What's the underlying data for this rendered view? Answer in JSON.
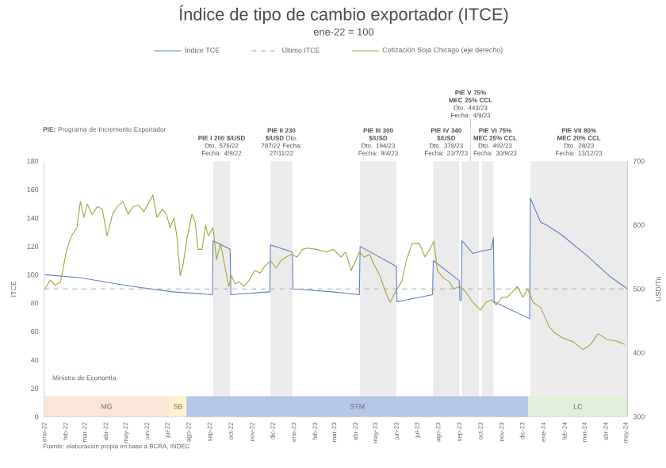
{
  "chart_data": {
    "type": "line",
    "title": "Índice de tipo de cambio exportador (ITCE)",
    "subtitle": "ene-22 = 100",
    "ylabel": "ITCE",
    "y2label": "USD/Tn",
    "legend": "top",
    "xlim": [
      "2022-01-01",
      "2024-05-03"
    ],
    "xticks": [
      {
        "value": "2022-01-01",
        "label": "ene-22"
      },
      {
        "value": "2022-02-01",
        "label": "feb-22"
      },
      {
        "value": "2022-03-01",
        "label": "mar-22"
      },
      {
        "value": "2022-04-01",
        "label": "abr-22"
      },
      {
        "value": "2022-05-01",
        "label": "may-22"
      },
      {
        "value": "2022-06-01",
        "label": "jun-22"
      },
      {
        "value": "2022-07-01",
        "label": "jul-22"
      },
      {
        "value": "2022-08-01",
        "label": "ago-22"
      },
      {
        "value": "2022-09-01",
        "label": "sep-22"
      },
      {
        "value": "2022-10-01",
        "label": "oct-22"
      },
      {
        "value": "2022-11-01",
        "label": "nov-22"
      },
      {
        "value": "2022-12-01",
        "label": "dic-22"
      },
      {
        "value": "2023-01-01",
        "label": "ene-23"
      },
      {
        "value": "2023-02-01",
        "label": "feb-23"
      },
      {
        "value": "2023-03-01",
        "label": "mar-23"
      },
      {
        "value": "2023-04-01",
        "label": "abr-23"
      },
      {
        "value": "2023-05-01",
        "label": "may-23"
      },
      {
        "value": "2023-06-01",
        "label": "jun-23"
      },
      {
        "value": "2023-07-01",
        "label": "jul-23"
      },
      {
        "value": "2023-08-01",
        "label": "ago-23"
      },
      {
        "value": "2023-09-01",
        "label": "sep-23"
      },
      {
        "value": "2023-10-01",
        "label": "oct-23"
      },
      {
        "value": "2023-11-01",
        "label": "nov-23"
      },
      {
        "value": "2023-12-01",
        "label": "dic-23"
      },
      {
        "value": "2024-01-01",
        "label": "ene-24"
      },
      {
        "value": "2024-02-01",
        "label": "feb-24"
      },
      {
        "value": "2024-03-01",
        "label": "mar-24"
      },
      {
        "value": "2024-04-01",
        "label": "abr-24"
      },
      {
        "value": "2024-05-01",
        "label": "may-24"
      }
    ],
    "ylim": [
      0,
      180
    ],
    "yticks": [
      0,
      20,
      40,
      60,
      80,
      100,
      120,
      140,
      160,
      180
    ],
    "y2lim": [
      300,
      700
    ],
    "y2ticks": [
      300,
      400,
      500,
      600,
      700
    ],
    "series": [
      {
        "name": "Índice TCE",
        "color": "#5b7fbf",
        "x": [
          "2022-01-02",
          "2022-02-22",
          "2022-05-07",
          "2022-07-08",
          "2022-09-04",
          "2022-09-05",
          "2022-09-30",
          "2022-10-01",
          "2022-11-27",
          "2022-11-28",
          "2022-12-30",
          "2022-12-31",
          "2023-02-26",
          "2023-04-07",
          "2023-04-08",
          "2023-05-31",
          "2023-06-01",
          "2023-07-23",
          "2023-07-24",
          "2023-08-31",
          "2023-09-01",
          "2023-09-03",
          "2023-09-04",
          "2023-09-20",
          "2023-10-05",
          "2023-10-17",
          "2023-10-20",
          "2023-10-21",
          "2023-12-12",
          "2023-12-13",
          "2023-12-28",
          "2024-01-06",
          "2024-01-28",
          "2024-03-06",
          "2024-04-07",
          "2024-05-03"
        ],
        "values": [
          100,
          98,
          92,
          88,
          86,
          124,
          118,
          86,
          88,
          121,
          116,
          90,
          88,
          86,
          120,
          106,
          81,
          86,
          110,
          96,
          82,
          82,
          124,
          115,
          117,
          118,
          126,
          81,
          69,
          154,
          137,
          135,
          128,
          113,
          99,
          90
        ]
      },
      {
        "name": "Último ITCE",
        "color": "#a6a6a6",
        "line_style": "dashed",
        "x": [
          "2022-01-01",
          "2024-05-03"
        ],
        "values": [
          90,
          90
        ]
      },
      {
        "name": "Cotización Soja Chicago (eje derecho)",
        "color": "#9aa83a",
        "axis": "y2",
        "x": [
          "2022-01-02",
          "2022-01-10",
          "2022-01-17",
          "2022-01-25",
          "2022-02-03",
          "2022-02-10",
          "2022-02-18",
          "2022-02-23",
          "2022-02-28",
          "2022-03-05",
          "2022-03-12",
          "2022-03-20",
          "2022-03-27",
          "2022-04-03",
          "2022-04-11",
          "2022-04-18",
          "2022-04-26",
          "2022-05-04",
          "2022-05-11",
          "2022-05-19",
          "2022-05-27",
          "2022-06-04",
          "2022-06-09",
          "2022-06-15",
          "2022-06-23",
          "2022-06-29",
          "2022-07-04",
          "2022-07-10",
          "2022-07-14",
          "2022-07-19",
          "2022-07-23",
          "2022-07-29",
          "2022-08-05",
          "2022-08-10",
          "2022-08-14",
          "2022-08-20",
          "2022-08-25",
          "2022-08-29",
          "2022-09-05",
          "2022-09-10",
          "2022-09-16",
          "2022-09-22",
          "2022-09-28",
          "2022-10-02",
          "2022-10-07",
          "2022-10-13",
          "2022-10-20",
          "2022-10-28",
          "2022-11-05",
          "2022-11-13",
          "2022-11-20",
          "2022-11-28",
          "2022-12-06",
          "2022-12-13",
          "2022-12-21",
          "2022-12-28",
          "2023-01-06",
          "2023-01-14",
          "2023-01-21",
          "2023-02-03",
          "2023-02-18",
          "2023-02-28",
          "2023-03-11",
          "2023-03-18",
          "2023-03-26",
          "2023-04-07",
          "2023-04-14",
          "2023-04-22",
          "2023-04-29",
          "2023-05-07",
          "2023-05-15",
          "2023-05-22",
          "2023-05-30",
          "2023-06-08",
          "2023-06-15",
          "2023-06-23",
          "2023-07-04",
          "2023-07-12",
          "2023-07-19",
          "2023-07-25",
          "2023-07-30",
          "2023-08-08",
          "2023-08-16",
          "2023-08-23",
          "2023-09-01",
          "2023-09-09",
          "2023-09-20",
          "2023-10-01",
          "2023-10-09",
          "2023-10-17",
          "2023-10-24",
          "2023-11-02",
          "2023-11-09",
          "2023-11-17",
          "2023-11-24",
          "2023-12-02",
          "2023-12-09",
          "2023-12-17",
          "2023-12-28",
          "2024-01-10",
          "2024-01-17",
          "2024-01-28",
          "2024-02-14",
          "2024-02-28",
          "2024-03-10",
          "2024-03-21",
          "2024-04-03",
          "2024-04-18",
          "2024-04-29"
        ],
        "values": [
          500,
          514,
          506,
          511,
          562,
          583,
          596,
          637,
          612,
          633,
          617,
          629,
          625,
          583,
          617,
          629,
          637,
          617,
          629,
          631,
          621,
          637,
          647,
          612,
          625,
          617,
          596,
          611,
          583,
          521,
          537,
          579,
          617,
          604,
          562,
          562,
          600,
          583,
          596,
          546,
          571,
          537,
          504,
          521,
          508,
          511,
          504,
          514,
          529,
          525,
          536,
          544,
          533,
          544,
          550,
          554,
          550,
          562,
          564,
          562,
          558,
          562,
          550,
          558,
          529,
          558,
          550,
          554,
          537,
          521,
          496,
          479,
          496,
          512,
          546,
          571,
          571,
          550,
          562,
          575,
          529,
          517,
          512,
          500,
          504,
          496,
          479,
          467,
          479,
          483,
          475,
          487,
          487,
          496,
          504,
          487,
          500,
          479,
          471,
          440,
          432,
          424,
          417,
          405,
          413,
          430,
          421,
          418,
          413
        ]
      }
    ],
    "bands": [
      {
        "axis": "x",
        "from": "2022-09-05",
        "to": "2022-09-30",
        "label": "**PIE I** **200 $/USD** Dto. 576/22 Fecha: 4/9/22"
      },
      {
        "axis": "x",
        "from": "2022-11-28",
        "to": "2022-12-30",
        "label": "**PIE II** **230 $/USD** Dto. 787/22 Fecha: 27/11/22"
      },
      {
        "axis": "x",
        "from": "2023-04-08",
        "to": "2023-05-31",
        "label": "**PIE III** **300 $/USD** Dto. 194/23 Fecha: 9/4/23"
      },
      {
        "axis": "x",
        "from": "2023-07-24",
        "to": "2023-08-31",
        "label": "**PIE IV** **340 $/USD** Dto. 378/23 Fecha: 23/7/23"
      },
      {
        "axis": "x",
        "from": "2023-09-04",
        "to": "2023-09-29",
        "label": "**PIE V** **75% MEC 25% CCL** Dto. 443/23 Fecha: 4/9/23"
      },
      {
        "axis": "x",
        "from": "2023-10-03",
        "to": "2023-10-20",
        "label": "**PIE VI** **75% MEC 25% CCL** Dto. 492/23 Fecha: 30/9/23"
      },
      {
        "axis": "x",
        "from": "2023-12-13",
        "to": "2024-05-03",
        "label": "**PIE VII** **80% MEC 20% CCL** Dto. 28/23 Fecha: 13/12/23"
      },
      {
        "axis": "x",
        "from": "2022-01-01",
        "to": "2022-07-03",
        "label": "MG",
        "color": "#fbe5d6"
      },
      {
        "axis": "x",
        "from": "2022-07-03",
        "to": "2022-07-28",
        "label": "SB",
        "color": "#fff2cc"
      },
      {
        "axis": "x",
        "from": "2022-07-28",
        "to": "2023-12-10",
        "label": "STM",
        "color": "#b4c7e7"
      },
      {
        "axis": "x",
        "from": "2023-12-10",
        "to": "2024-05-03",
        "label": "LC",
        "color": "#e2efda"
      }
    ],
    "annotations": [
      "**PIE:** Programa de Incremento Exportador",
      "Ministro de Economía",
      "Fuente: elaboración propia en base a BCRA, INDEC"
    ]
  }
}
